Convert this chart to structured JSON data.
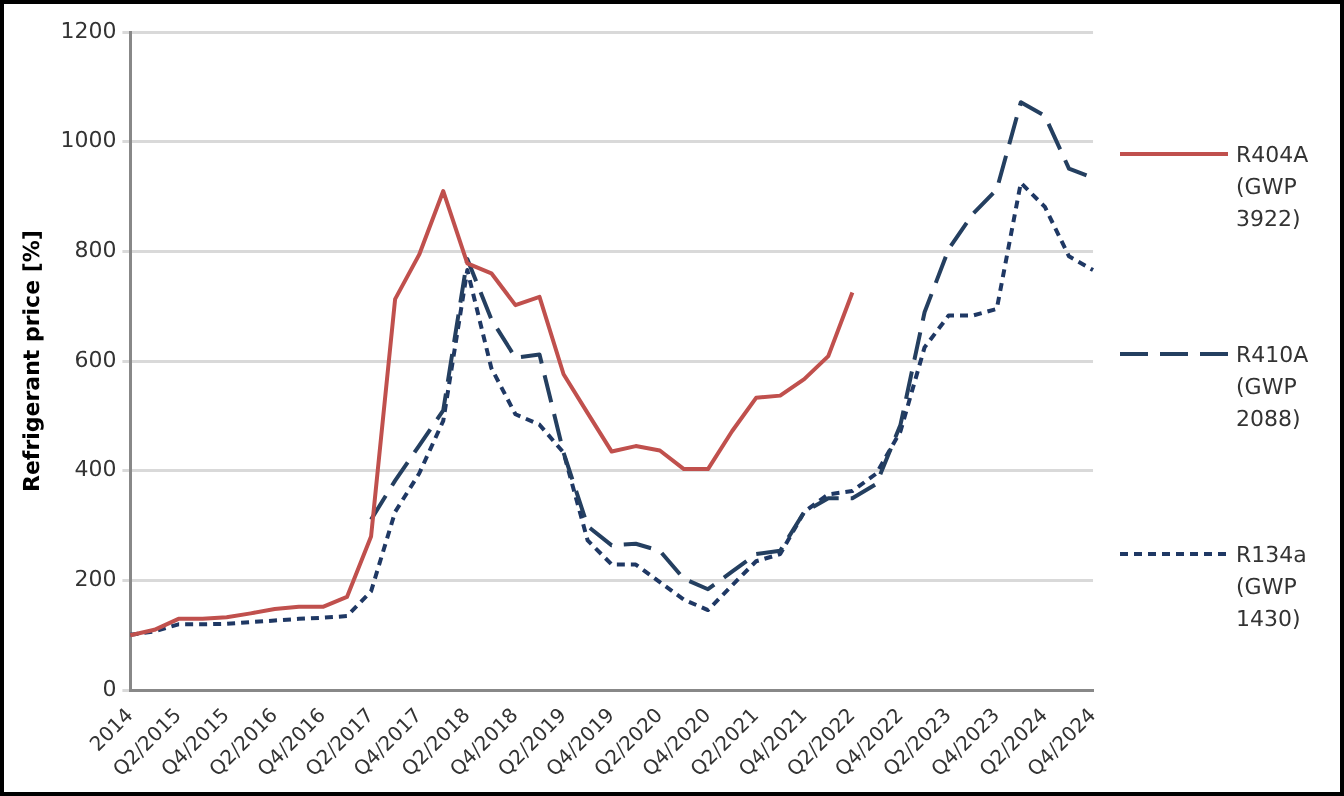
{
  "chart_data": {
    "type": "line",
    "ylabel": "Refrigerant price [%]",
    "categories": [
      "2014",
      null,
      "Q2/2015",
      null,
      "Q4/2015",
      null,
      "Q2/2016",
      null,
      "Q4/2016",
      null,
      "Q2/2017",
      null,
      "Q4/2017",
      null,
      "Q2/2018",
      null,
      "Q4/2018",
      null,
      "Q2/2019",
      null,
      "Q4/2019",
      null,
      "Q2/2020",
      null,
      "Q4/2020",
      null,
      "Q2/2021",
      null,
      "Q4/2021",
      null,
      "Q2/2022",
      null,
      "Q4/2022",
      null,
      "Q2/2023",
      null,
      "Q4/2023",
      null,
      "Q2/2024",
      null,
      "Q4/2024"
    ],
    "ylim": [
      0,
      1200
    ],
    "yticks": [
      0,
      200,
      400,
      600,
      800,
      1000,
      1200
    ],
    "grid": "y",
    "legend": "right",
    "marker": "none",
    "series": [
      {
        "name": "R404A (GWP 3922)",
        "color": "#c0504d",
        "line_style": "solid",
        "values": [
          100,
          110,
          130,
          130,
          133,
          140,
          148,
          152,
          152,
          170,
          280,
          713,
          794,
          910,
          778,
          760,
          702,
          717,
          576,
          505,
          435,
          445,
          437,
          403,
          403,
          472,
          533,
          537,
          567,
          609,
          725,
          null,
          null,
          null,
          null,
          null,
          null,
          null,
          null,
          null,
          null
        ]
      },
      {
        "name": "R410A (GWP 2088)",
        "color": "#243f60",
        "line_style": "dashed",
        "values": [
          null,
          null,
          null,
          null,
          null,
          null,
          null,
          null,
          null,
          null,
          311,
          382,
          446,
          510,
          786,
          676,
          606,
          612,
          433,
          299,
          264,
          267,
          254,
          203,
          184,
          216,
          248,
          254,
          325,
          350,
          350,
          376,
          484,
          689,
          804,
          868,
          913,
          1072,
          1047,
          951,
          934
        ]
      },
      {
        "name": "R134a (GWP 1430)",
        "color": "#1f3864",
        "line_style": "dotted",
        "values": [
          101,
          107,
          120,
          120,
          121,
          124,
          127,
          130,
          132,
          135,
          180,
          325,
          395,
          491,
          766,
          587,
          503,
          484,
          433,
          273,
          229,
          229,
          197,
          165,
          146,
          191,
          235,
          248,
          325,
          357,
          363,
          395,
          472,
          625,
          683,
          683,
          695,
          925,
          881,
          791,
          766
        ]
      }
    ]
  }
}
